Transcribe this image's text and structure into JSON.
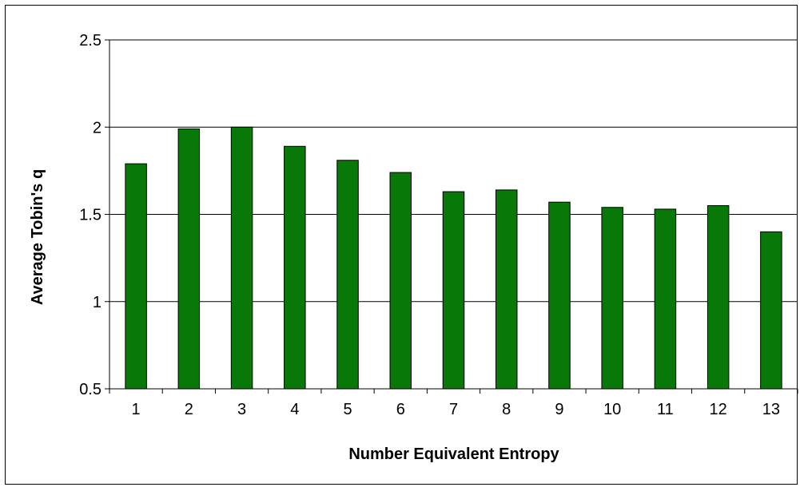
{
  "chart_data": {
    "type": "bar",
    "title": "",
    "xlabel": "Number Equivalent Entropy",
    "ylabel": "Average Tobin's q",
    "categories": [
      "1",
      "2",
      "3",
      "4",
      "5",
      "6",
      "7",
      "8",
      "9",
      "10",
      "11",
      "12",
      "13"
    ],
    "values": [
      1.79,
      1.99,
      2.0,
      1.89,
      1.81,
      1.74,
      1.63,
      1.64,
      1.57,
      1.54,
      1.53,
      1.55,
      1.4
    ],
    "ylim": [
      0.5,
      2.5
    ],
    "yticks": [
      "0.5",
      "1",
      "1.5",
      "2",
      "2.5"
    ],
    "grid": true,
    "legend": "none",
    "bar_color": "#087808",
    "bar_edge_color": "#000000"
  }
}
